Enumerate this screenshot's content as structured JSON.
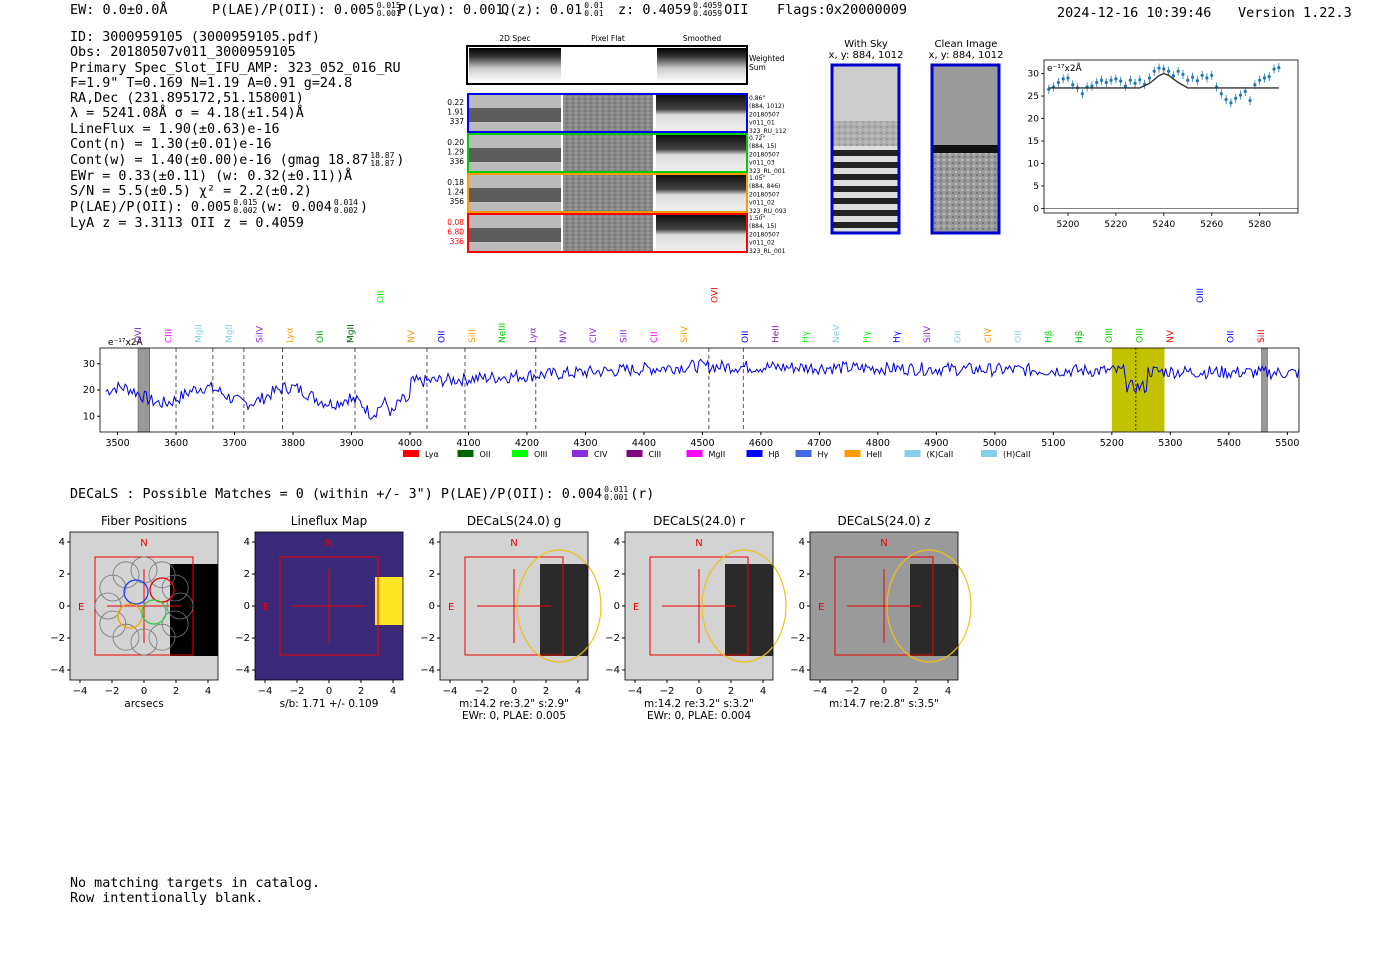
{
  "header": {
    "ew": "EW: 0.0±0.0Å",
    "plae_label": "P(LAE)/P(OII): 0.005",
    "plae_hi": "0.015",
    "plae_lo": "0.001",
    "plya": "P(Lyα): 0.001",
    "qz_label": "Q(z): 0.01",
    "qz_hi": "0.01",
    "qz_lo": "0.01",
    "z_label": "z: 0.4059",
    "z_hi": "0.4059",
    "z_lo": "0.4059",
    "z_line": "OII",
    "flags": "Flags:0x20000009",
    "timestamp": "2024-12-16 10:39:46",
    "version": "Version 1.22.3"
  },
  "info": {
    "id": "ID: 3000959105 (3000959105.pdf)",
    "obs": "Obs: 20180507v011_3000959105",
    "primary": "Primary Spec_Slot_IFU_AMP: 323_052_016_RU",
    "fline": "F=1.9\"  T=0.169  N=1.19  A=0.91  g=24.8",
    "radec": "RA,Dec (231.895172,51.158001)",
    "lambda": "λ = 5241.08Å  σ = 4.18(±1.54)Å",
    "lineflux": "LineFlux = 1.90(±0.63)e-16",
    "contn": "Cont(n) = 1.30(±0.01)e-16",
    "contw": "Cont(w) = 1.40(±0.00)e-16 (gmag 18.87",
    "contw_hi": "18.87",
    "contw_lo": "18.87",
    "ewr": "EWr = 0.33(±0.11) (w: 0.32(±0.11))Å",
    "sn": "S/N = 5.5(±0.5)  χ² = 2.2(±0.2)",
    "plae": "P(LAE)/P(OII): 0.005",
    "plae_hi": "0.015",
    "plae_lo": "0.002",
    "plae_w": "(w: 0.004",
    "plae_w_hi": "0.014",
    "plae_w_lo": "0.002",
    "lya": "LyA z = 3.3113  OII z = 0.4059"
  },
  "cutouts": {
    "col_labels": [
      "2D Spec",
      "Pixel Flat",
      "Smoothed"
    ],
    "weighted_sum": [
      "Weighted",
      "Sum"
    ],
    "rows": [
      {
        "vals": [
          "0.22",
          "1.91",
          "337"
        ],
        "color": "#0000ff",
        "side": [
          "0.86\"",
          "(884, 1012)",
          "20180507",
          "v011_01",
          "323_RU_112"
        ]
      },
      {
        "vals": [
          "0.20",
          "1.29",
          "336"
        ],
        "color": "#00cc00",
        "side": [
          "0.72\"",
          "(884, 15)",
          "20180507",
          "v011_03",
          "323_RL_001"
        ]
      },
      {
        "vals": [
          "0.18",
          "1.24",
          "356"
        ],
        "color": "#ff9900",
        "side": [
          "1.05\"",
          "(884, 846)",
          "20180507",
          "v011_02",
          "323_RU_093"
        ]
      },
      {
        "vals": [
          "0.08",
          "6.80",
          "336"
        ],
        "color": "#ff0000",
        "side": [
          "1.50\"",
          "(884, 15)",
          "20180507",
          "v011_02",
          "323_RL_001"
        ]
      }
    ],
    "with_sky": [
      "With Sky",
      "x, y: 884, 1012"
    ],
    "clean": [
      "Clean Image",
      "x, y: 884, 1012"
    ]
  },
  "chart_data": [
    {
      "type": "line",
      "title": "",
      "ylabel": "e⁻¹⁷x2Å",
      "xlim": [
        5190,
        5296
      ],
      "ylim": [
        -1,
        33
      ],
      "xticks": [
        5200,
        5220,
        5240,
        5260,
        5280
      ],
      "yticks": [
        0,
        5,
        10,
        15,
        20,
        25,
        30
      ],
      "series": [
        {
          "kind": "errorbar",
          "color": "#1f77b4",
          "x": [
            5192,
            5194,
            5196,
            5198,
            5200,
            5202,
            5204,
            5206,
            5208,
            5210,
            5212,
            5214,
            5216,
            5218,
            5220,
            5222,
            5224,
            5226,
            5228,
            5230,
            5232,
            5234,
            5236,
            5238,
            5240,
            5242,
            5244,
            5246,
            5248,
            5250,
            5252,
            5254,
            5256,
            5258,
            5260,
            5262,
            5264,
            5266,
            5268,
            5270,
            5272,
            5274,
            5276,
            5278,
            5280,
            5282,
            5284,
            5286,
            5288
          ],
          "y": [
            26.5,
            27,
            28,
            28.8,
            29,
            27.5,
            26.8,
            25.5,
            27,
            27.2,
            28,
            28.5,
            28,
            28.5,
            28.8,
            28.3,
            27.2,
            28.5,
            27.8,
            28.6,
            27.6,
            29,
            30.5,
            31.2,
            31,
            30.5,
            29.5,
            30.5,
            29.8,
            28.5,
            29.2,
            28.4,
            29.6,
            29,
            29.6,
            27,
            25.5,
            24.2,
            23.5,
            24.5,
            25.2,
            26,
            24,
            27.5,
            28.5,
            29,
            29.3,
            31,
            31.3
          ]
        },
        {
          "kind": "model",
          "color": "#333333",
          "x": [
            5192,
            5230,
            5234,
            5238,
            5240,
            5242,
            5246,
            5250,
            5288
          ],
          "y": [
            26.8,
            26.8,
            27.8,
            29.5,
            30.0,
            29.6,
            28.0,
            26.8,
            26.8
          ]
        }
      ]
    },
    {
      "type": "line",
      "title": "",
      "ylabel": "e⁻¹⁷x2Å",
      "xlim": [
        3470,
        5520
      ],
      "ylim": [
        4,
        36
      ],
      "xticks": [
        3500,
        3600,
        3700,
        3800,
        3900,
        4000,
        4100,
        4200,
        4300,
        4400,
        4500,
        4600,
        4700,
        4800,
        4900,
        5000,
        5100,
        5200,
        5300,
        5400,
        5500
      ],
      "yticks": [
        10,
        20,
        30
      ],
      "highlight": [
        5200,
        5290
      ],
      "emission_center": 5241,
      "bad_regions": [
        [
          3535,
          3555
        ],
        [
          5456,
          5466
        ]
      ],
      "vlines": [
        3600,
        3663,
        3716,
        3782,
        3906,
        4029,
        4094,
        4215,
        4511,
        4570
      ],
      "line_labels": [
        {
          "name": "OVI",
          "color": "#7a1fa2"
        },
        {
          "name": "CIII",
          "color": "#ff00ff"
        },
        {
          "name": "MgII",
          "color": "#87ceeb"
        },
        {
          "name": "MgII",
          "color": "#87ceeb"
        },
        {
          "name": "SiIV",
          "color": "#8a2be2"
        },
        {
          "name": "Lyα",
          "color": "#ff9900"
        },
        {
          "name": "OII",
          "color": "#00aa00"
        },
        {
          "name": "MgII",
          "color": "#006400"
        },
        {
          "name": "OII",
          "color": "#00ff00"
        },
        {
          "name": "NV",
          "color": "#ff9900"
        },
        {
          "name": "OII",
          "color": "#0000ff"
        },
        {
          "name": "SiII",
          "color": "#ff9900"
        },
        {
          "name": "NeIII",
          "color": "#00cc00"
        },
        {
          "name": "Lyα",
          "color": "#8a2be2"
        },
        {
          "name": "NV",
          "color": "#8a2be2"
        },
        {
          "name": "CIV",
          "color": "#8a2be2"
        },
        {
          "name": "SiII",
          "color": "#8a2be2"
        },
        {
          "name": "CII",
          "color": "#ff00ff"
        },
        {
          "name": "SiIV",
          "color": "#ff9900"
        },
        {
          "name": "OVI",
          "color": "#ff0000"
        },
        {
          "name": "OII",
          "color": "#0000ff"
        },
        {
          "name": "HeII",
          "color": "#7a1fa2"
        },
        {
          "name": "Hγ",
          "color": "#00ff00"
        },
        {
          "name": "NeV",
          "color": "#87ceeb"
        },
        {
          "name": "Hγ",
          "color": "#00ff00"
        },
        {
          "name": "Hγ",
          "color": "#0000ff"
        },
        {
          "name": "SiIV",
          "color": "#8a2be2"
        },
        {
          "name": "OII",
          "color": "#87ceeb"
        },
        {
          "name": "CIV",
          "color": "#ff9900"
        },
        {
          "name": "OII",
          "color": "#87ceeb"
        },
        {
          "name": "Hβ",
          "color": "#00cc00"
        },
        {
          "name": "Hβ",
          "color": "#00cc00"
        },
        {
          "name": "OIII",
          "color": "#00cc00"
        },
        {
          "name": "OIII",
          "color": "#00cc00"
        },
        {
          "name": "NV",
          "color": "#ff0000"
        },
        {
          "name": "OIII",
          "color": "#0000ff"
        },
        {
          "name": "OII",
          "color": "#0000ff"
        },
        {
          "name": "SiII",
          "color": "#ff0000"
        }
      ],
      "legend": [
        {
          "name": "Lyα",
          "color": "#ff0000"
        },
        {
          "name": "OII",
          "color": "#006400"
        },
        {
          "name": "OIII",
          "color": "#00ff00"
        },
        {
          "name": "CIV",
          "color": "#8a2be2"
        },
        {
          "name": "CIII",
          "color": "#800080"
        },
        {
          "name": "MgII",
          "color": "#ff00ff"
        },
        {
          "name": "Hβ",
          "color": "#0000ff"
        },
        {
          "name": "Hγ",
          "color": "#4169e1"
        },
        {
          "name": "HeII",
          "color": "#ff9900"
        },
        {
          "name": "(K)CaII",
          "color": "#87ceeb"
        },
        {
          "name": "(H)CaII",
          "color": "#87ceeb"
        }
      ],
      "line_color": "#0000dd"
    }
  ],
  "decals": {
    "summary": "DECaLS : Possible Matches = 0 (within +/- 3\")  P(LAE)/P(OII): 0.004",
    "summary_hi": "0.011",
    "summary_lo": "0.001",
    "summary_band": "(r)",
    "panels": [
      {
        "title": "Fiber Positions",
        "caption1": "arcsecs",
        "caption2": ""
      },
      {
        "title": "Lineflux Map",
        "caption1": "s/b: 1.71 +/- 0.109",
        "caption2": ""
      },
      {
        "title": "DECaLS(24.0) g",
        "caption1": "m:14.2  re:3.2\"  s:2.9\"",
        "caption2": "EWr: 0, PLAE: 0.005"
      },
      {
        "title": "DECaLS(24.0) r",
        "caption1": "m:14.2  re:3.2\"  s:3.2\"",
        "caption2": "EWr: 0, PLAE: 0.004"
      },
      {
        "title": "DECaLS(24.0) z",
        "caption1": "m:14.7  re:2.8\"  s:3.5\"",
        "caption2": ""
      }
    ],
    "compass_n": "N",
    "compass_e": "E",
    "axis_ticks": [
      "−4",
      "−2",
      "0",
      "2",
      "4"
    ]
  },
  "catalog": {
    "line1": "No matching targets in catalog.",
    "line2": "Row intentionally blank."
  }
}
